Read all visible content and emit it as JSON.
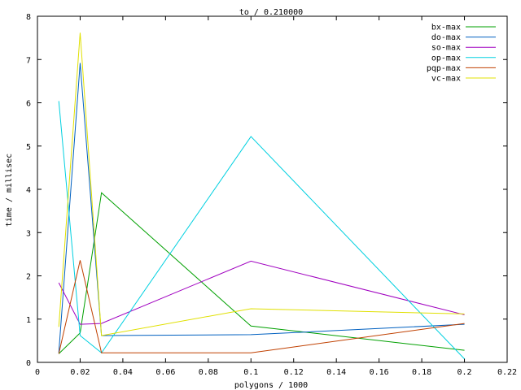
{
  "chart_data": {
    "type": "line",
    "title": "to / 0.210000",
    "xlabel": "polygons / 1000",
    "ylabel": "time / millisec",
    "xlim": [
      0,
      0.22
    ],
    "ylim": [
      0,
      8
    ],
    "xticks": [
      0,
      0.02,
      0.04,
      0.06,
      0.08,
      0.1,
      0.12,
      0.14,
      0.16,
      0.18,
      0.2,
      0.22
    ],
    "xtick_labels": [
      "0",
      "0.02",
      "0.04",
      "0.06",
      "0.08",
      "0.1",
      "0.12",
      "0.14",
      "0.16",
      "0.18",
      "0.2",
      "0.22"
    ],
    "yticks": [
      0,
      1,
      2,
      3,
      4,
      5,
      6,
      7,
      8
    ],
    "ytick_labels": [
      "0",
      "1",
      "2",
      "3",
      "4",
      "5",
      "6",
      "7",
      "8"
    ],
    "grid": false,
    "legend_position": "top-right",
    "x": [
      0.01,
      0.02,
      0.03,
      0.1,
      0.2
    ],
    "series": [
      {
        "name": "bx-max",
        "color": "#00a000",
        "values": [
          0.2,
          0.68,
          3.92,
          0.84,
          0.28
        ]
      },
      {
        "name": "do-max",
        "color": "#0060c0",
        "values": [
          0.22,
          6.92,
          0.62,
          0.64,
          0.88
        ]
      },
      {
        "name": "so-max",
        "color": "#a000c0",
        "values": [
          1.84,
          0.88,
          0.9,
          2.34,
          1.1
        ]
      },
      {
        "name": "op-max",
        "color": "#00d0e0",
        "values": [
          6.04,
          0.62,
          0.22,
          5.22,
          0.08
        ]
      },
      {
        "name": "pqp-max",
        "color": "#c04000",
        "values": [
          0.2,
          2.36,
          0.22,
          0.22,
          0.9
        ]
      },
      {
        "name": "vc-max",
        "color": "#e0e000",
        "values": [
          0.82,
          7.62,
          0.62,
          1.24,
          1.12
        ]
      }
    ]
  }
}
